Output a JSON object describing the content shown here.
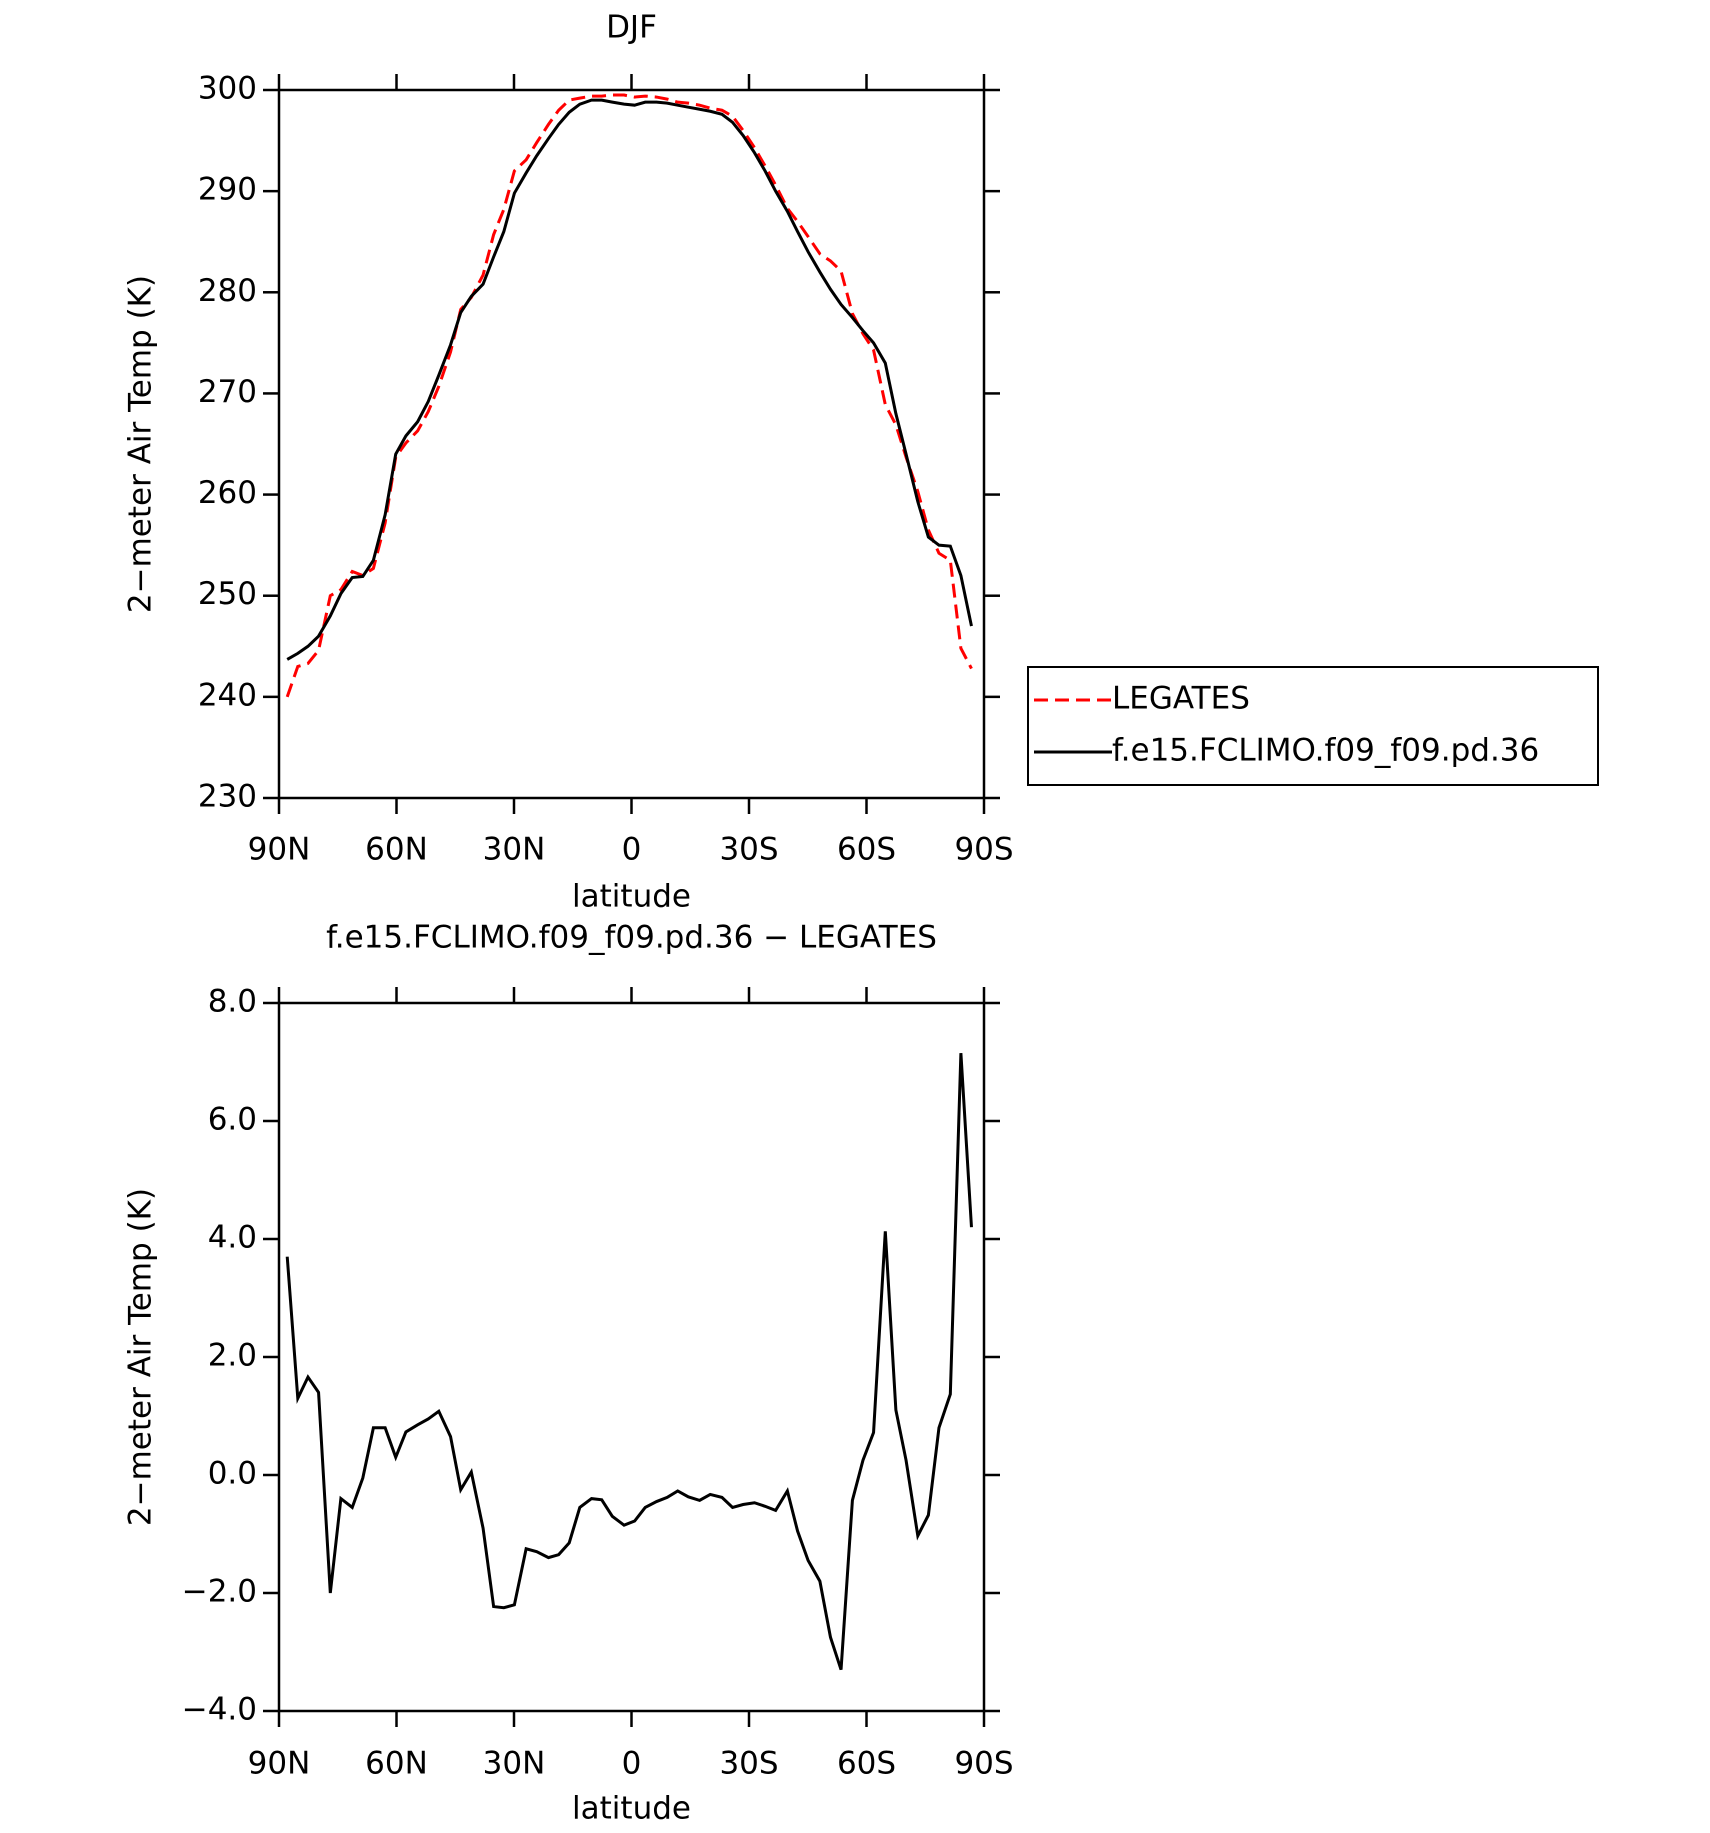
{
  "chart_data": [
    {
      "type": "line",
      "title": "DJF",
      "x_label": "latitude",
      "y_label": "2−meter Air Temp (K)",
      "x": [
        87.9,
        85.2,
        82.6,
        79.9,
        76.9,
        74.2,
        71.3,
        68.6,
        65.9,
        62.9,
        60.2,
        57.6,
        54.6,
        51.9,
        49.2,
        46.2,
        43.6,
        40.9,
        37.9,
        35.2,
        32.6,
        29.9,
        26.9,
        24.2,
        21.2,
        18.6,
        15.9,
        13.2,
        10.2,
        7.6,
        4.9,
        1.9,
        -0.8,
        -3.5,
        -6.4,
        -9.1,
        -11.8,
        -14.5,
        -17.4,
        -20.1,
        -23.1,
        -25.8,
        -28.5,
        -31.4,
        -34.1,
        -36.8,
        -39.8,
        -42.4,
        -45.1,
        -48.1,
        -50.8,
        -53.5,
        -56.4,
        -59.1,
        -61.8,
        -64.8,
        -67.5,
        -70.1,
        -73.1,
        -75.8,
        -78.5,
        -81.4,
        -84.1,
        -86.8
      ],
      "series": [
        {
          "name": "LEGATES",
          "color": "#ff0000",
          "line_style": "dashed",
          "values": [
            240.0,
            243.0,
            243.3,
            244.6,
            250.0,
            250.6,
            252.4,
            252.0,
            252.7,
            257.2,
            263.7,
            265.1,
            266.3,
            268.2,
            270.7,
            274.1,
            278.3,
            279.5,
            281.7,
            285.7,
            288.2,
            292.0,
            293.1,
            294.8,
            296.6,
            298.0,
            299.0,
            299.2,
            299.4,
            299.4,
            299.5,
            299.5,
            299.3,
            299.4,
            299.3,
            299.1,
            298.8,
            298.7,
            298.5,
            298.2,
            298.0,
            297.4,
            296.0,
            294.3,
            292.5,
            290.6,
            288.3,
            287.0,
            285.5,
            283.8,
            283.1,
            282.1,
            277.9,
            275.9,
            274.3,
            268.9,
            266.9,
            263.7,
            260.3,
            256.5,
            254.2,
            253.5,
            244.8,
            242.8
          ]
        },
        {
          "name": "f.e15.FCLIMO.f09_f09.pd.36",
          "color": "#000000",
          "line_style": "solid",
          "values": [
            243.7,
            244.3,
            245.0,
            246.0,
            248.0,
            250.2,
            251.8,
            251.9,
            253.5,
            258.0,
            264.0,
            265.8,
            267.2,
            269.2,
            271.8,
            274.8,
            278.0,
            279.6,
            280.8,
            283.5,
            286.0,
            289.8,
            291.8,
            293.5,
            295.2,
            296.6,
            297.8,
            298.6,
            299.0,
            299.0,
            298.8,
            298.6,
            298.5,
            298.8,
            298.8,
            298.7,
            298.5,
            298.3,
            298.1,
            297.9,
            297.6,
            296.8,
            295.5,
            293.8,
            292.0,
            290.0,
            288.0,
            286.0,
            284.0,
            282.0,
            280.3,
            278.8,
            277.5,
            276.2,
            275.0,
            273.0,
            268.0,
            264.0,
            259.3,
            255.8,
            255.0,
            254.9,
            252.0,
            247.0
          ]
        }
      ],
      "xlim": [
        90,
        -90
      ],
      "xticks": [
        {
          "value": 90,
          "label": "90N"
        },
        {
          "value": 60,
          "label": "60N"
        },
        {
          "value": 30,
          "label": "30N"
        },
        0,
        {
          "value": -30,
          "label": "30S"
        },
        {
          "value": -60,
          "label": "60S"
        },
        {
          "value": -90,
          "label": "90S"
        }
      ],
      "ylim": [
        230,
        300
      ],
      "yticks": [
        230,
        240,
        250,
        260,
        270,
        280,
        290,
        300
      ],
      "legend": "right"
    },
    {
      "type": "line",
      "title": "f.e15.FCLIMO.f09_f09.pd.36 − LEGATES",
      "x_label": "latitude",
      "y_label": "2−meter Air Temp (K)",
      "x": [
        87.9,
        85.2,
        82.6,
        79.9,
        76.9,
        74.2,
        71.3,
        68.6,
        65.9,
        62.9,
        60.2,
        57.6,
        54.6,
        51.9,
        49.2,
        46.2,
        43.6,
        40.9,
        37.9,
        35.2,
        32.6,
        29.9,
        26.9,
        24.2,
        21.2,
        18.6,
        15.9,
        13.2,
        10.2,
        7.6,
        4.9,
        1.9,
        -0.8,
        -3.5,
        -6.4,
        -9.1,
        -11.8,
        -14.5,
        -17.4,
        -20.1,
        -23.1,
        -25.8,
        -28.5,
        -31.4,
        -34.1,
        -36.8,
        -39.8,
        -42.4,
        -45.1,
        -48.1,
        -50.8,
        -53.5,
        -56.4,
        -59.1,
        -61.8,
        -64.8,
        -67.5,
        -70.1,
        -73.1,
        -75.8,
        -78.5,
        -81.4,
        -84.1,
        -86.8
      ],
      "series": [
        {
          "color": "#000000",
          "line_style": "solid",
          "values": [
            3.7,
            1.3,
            1.66,
            1.4,
            -2.0,
            -0.4,
            -0.55,
            -0.05,
            0.8,
            0.8,
            0.3,
            0.73,
            0.85,
            0.95,
            1.08,
            0.65,
            -0.25,
            0.05,
            -0.9,
            -2.23,
            -2.25,
            -2.2,
            -1.25,
            -1.3,
            -1.4,
            -1.35,
            -1.15,
            -0.55,
            -0.4,
            -0.42,
            -0.7,
            -0.85,
            -0.78,
            -0.55,
            -0.45,
            -0.38,
            -0.27,
            -0.37,
            -0.43,
            -0.33,
            -0.38,
            -0.55,
            -0.5,
            -0.47,
            -0.53,
            -0.6,
            -0.27,
            -0.95,
            -1.45,
            -1.8,
            -2.75,
            -3.3,
            -0.43,
            0.25,
            0.72,
            4.13,
            1.1,
            0.25,
            -1.03,
            -0.68,
            0.8,
            1.37,
            7.15,
            4.2
          ]
        }
      ],
      "xlim": [
        90,
        -90
      ],
      "xticks": [
        {
          "value": 90,
          "label": "90N"
        },
        {
          "value": 60,
          "label": "60N"
        },
        {
          "value": 30,
          "label": "30N"
        },
        0,
        {
          "value": -30,
          "label": "30S"
        },
        {
          "value": -60,
          "label": "60S"
        },
        {
          "value": -90,
          "label": "90S"
        }
      ],
      "ylim": [
        -4,
        8
      ],
      "yticks": [
        {
          "value": -4,
          "label": "−4.0"
        },
        {
          "value": -2,
          "label": "−2.0"
        },
        {
          "value": 0,
          "label": "0.0"
        },
        {
          "value": 2,
          "label": "2.0"
        },
        {
          "value": 4,
          "label": "4.0"
        },
        {
          "value": 6,
          "label": "6.0"
        },
        {
          "value": 8,
          "label": "8.0"
        }
      ]
    }
  ]
}
